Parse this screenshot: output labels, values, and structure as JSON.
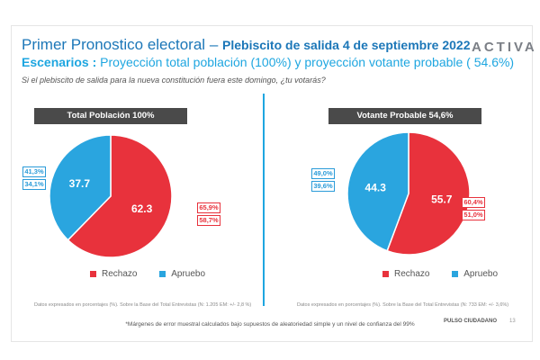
{
  "header": {
    "title_main": "Primer Pronostico electoral",
    "title_dash": "–",
    "title_sub": "Plebiscito de salida 4 de septiembre 2022",
    "subtitle_label": "Escenarios :",
    "subtitle_text": "Proyección total población (100%) y proyección votante probable ( 54.6%)",
    "question": "Si el plebiscito de salida para la nueva constitución fuera este domingo, ¿tu votarás?",
    "logo": "ACTIVA"
  },
  "colors": {
    "rechazo": "#e8323c",
    "apruebo": "#2aa5df",
    "accent": "#1c77b8"
  },
  "chart_data": [
    {
      "type": "pie",
      "title": "Total Población 100%",
      "slices": [
        {
          "name": "Rechazo",
          "value": 62.3,
          "margin_high": "65,9%",
          "margin_low": "58,7%"
        },
        {
          "name": "Apruebo",
          "value": 37.7,
          "margin_high": "41,3%",
          "margin_low": "34,1%"
        }
      ],
      "legend": [
        "Rechazo",
        "Apruebo"
      ],
      "note": "Datos expresados en porcentajes (%). Sobre la Base del Total Entrevistas (N: 1.205  EM: +/- 2,8 %)"
    },
    {
      "type": "pie",
      "title": "Votante Probable 54,6%",
      "slices": [
        {
          "name": "Rechazo",
          "value": 55.7,
          "margin_high": "60,4%",
          "margin_low": "51,0%"
        },
        {
          "name": "Apruebo",
          "value": 44.3,
          "margin_high": "49,0%",
          "margin_low": "39,6%"
        }
      ],
      "legend": [
        "Rechazo",
        "Apruebo"
      ],
      "note": "Datos expresados en porcentajes (%). Sobre la Base del Total Entrevistas (N: 733  EM: +/- 3,6%)"
    }
  ],
  "footer": {
    "footnote": "*Márgenes de error muestral calculados bajo supuestos de aleatoriedad simple y un nivel de confianza del 99%",
    "brand": "PULSO CIUDADANO",
    "page": "13"
  }
}
